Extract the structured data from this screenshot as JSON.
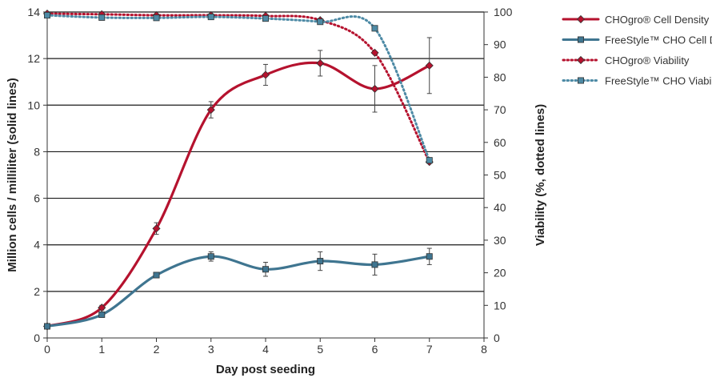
{
  "chart_data": {
    "type": "line",
    "xlabel": "Day post seeding",
    "ylabel": "Million cells / milliliter (solid lines)",
    "y2label": "Viability (%, dotted lines)",
    "xlim": [
      0,
      8
    ],
    "ylim": [
      0,
      14
    ],
    "y2lim": [
      0,
      100
    ],
    "xticks": [
      "0",
      "1",
      "2",
      "3",
      "4",
      "5",
      "6",
      "7",
      "8"
    ],
    "yticks": [
      "0",
      "2",
      "4",
      "6",
      "8",
      "10",
      "12",
      "14"
    ],
    "y2ticks": [
      "0",
      "10",
      "20",
      "30",
      "40",
      "50",
      "60",
      "70",
      "80",
      "90",
      "100"
    ],
    "grid": "horizontal",
    "legend_position": "top-right",
    "series": [
      {
        "name": "CHOgro® Cell Density",
        "axis": "left",
        "style": "solid",
        "marker": "diamond",
        "color": "#b5122e",
        "x": [
          0,
          1,
          2,
          3,
          4,
          5,
          6,
          7
        ],
        "y": [
          0.5,
          1.3,
          4.7,
          9.8,
          11.3,
          11.8,
          10.7,
          11.7
        ],
        "error": [
          0,
          0.1,
          0.25,
          0.35,
          0.45,
          0.55,
          1.0,
          1.2
        ]
      },
      {
        "name": "FreeStyle™ CHO Cell Density",
        "axis": "left",
        "style": "solid",
        "marker": "square",
        "color": "#3f7590",
        "x": [
          0,
          1,
          2,
          3,
          4,
          5,
          6,
          7
        ],
        "y": [
          0.5,
          1.0,
          2.7,
          3.5,
          2.95,
          3.3,
          3.15,
          3.5
        ],
        "error": [
          0,
          0,
          0.1,
          0.2,
          0.3,
          0.4,
          0.45,
          0.35
        ]
      },
      {
        "name": "CHOgro® Viability",
        "axis": "right",
        "style": "dotted",
        "marker": "diamond",
        "color": "#b5122e",
        "x": [
          0,
          1,
          2,
          3,
          4,
          5,
          6,
          7
        ],
        "y": [
          99.5,
          99.3,
          99,
          99,
          98.8,
          97.5,
          87.5,
          54
        ]
      },
      {
        "name": "FreeStyle™ CHO Viability",
        "axis": "right",
        "style": "dotted",
        "marker": "square",
        "color": "#4d8aa5",
        "x": [
          0,
          1,
          2,
          3,
          4,
          5,
          6,
          7
        ],
        "y": [
          99,
          98.3,
          98.2,
          98.5,
          98,
          97,
          95,
          54.5
        ]
      }
    ]
  }
}
